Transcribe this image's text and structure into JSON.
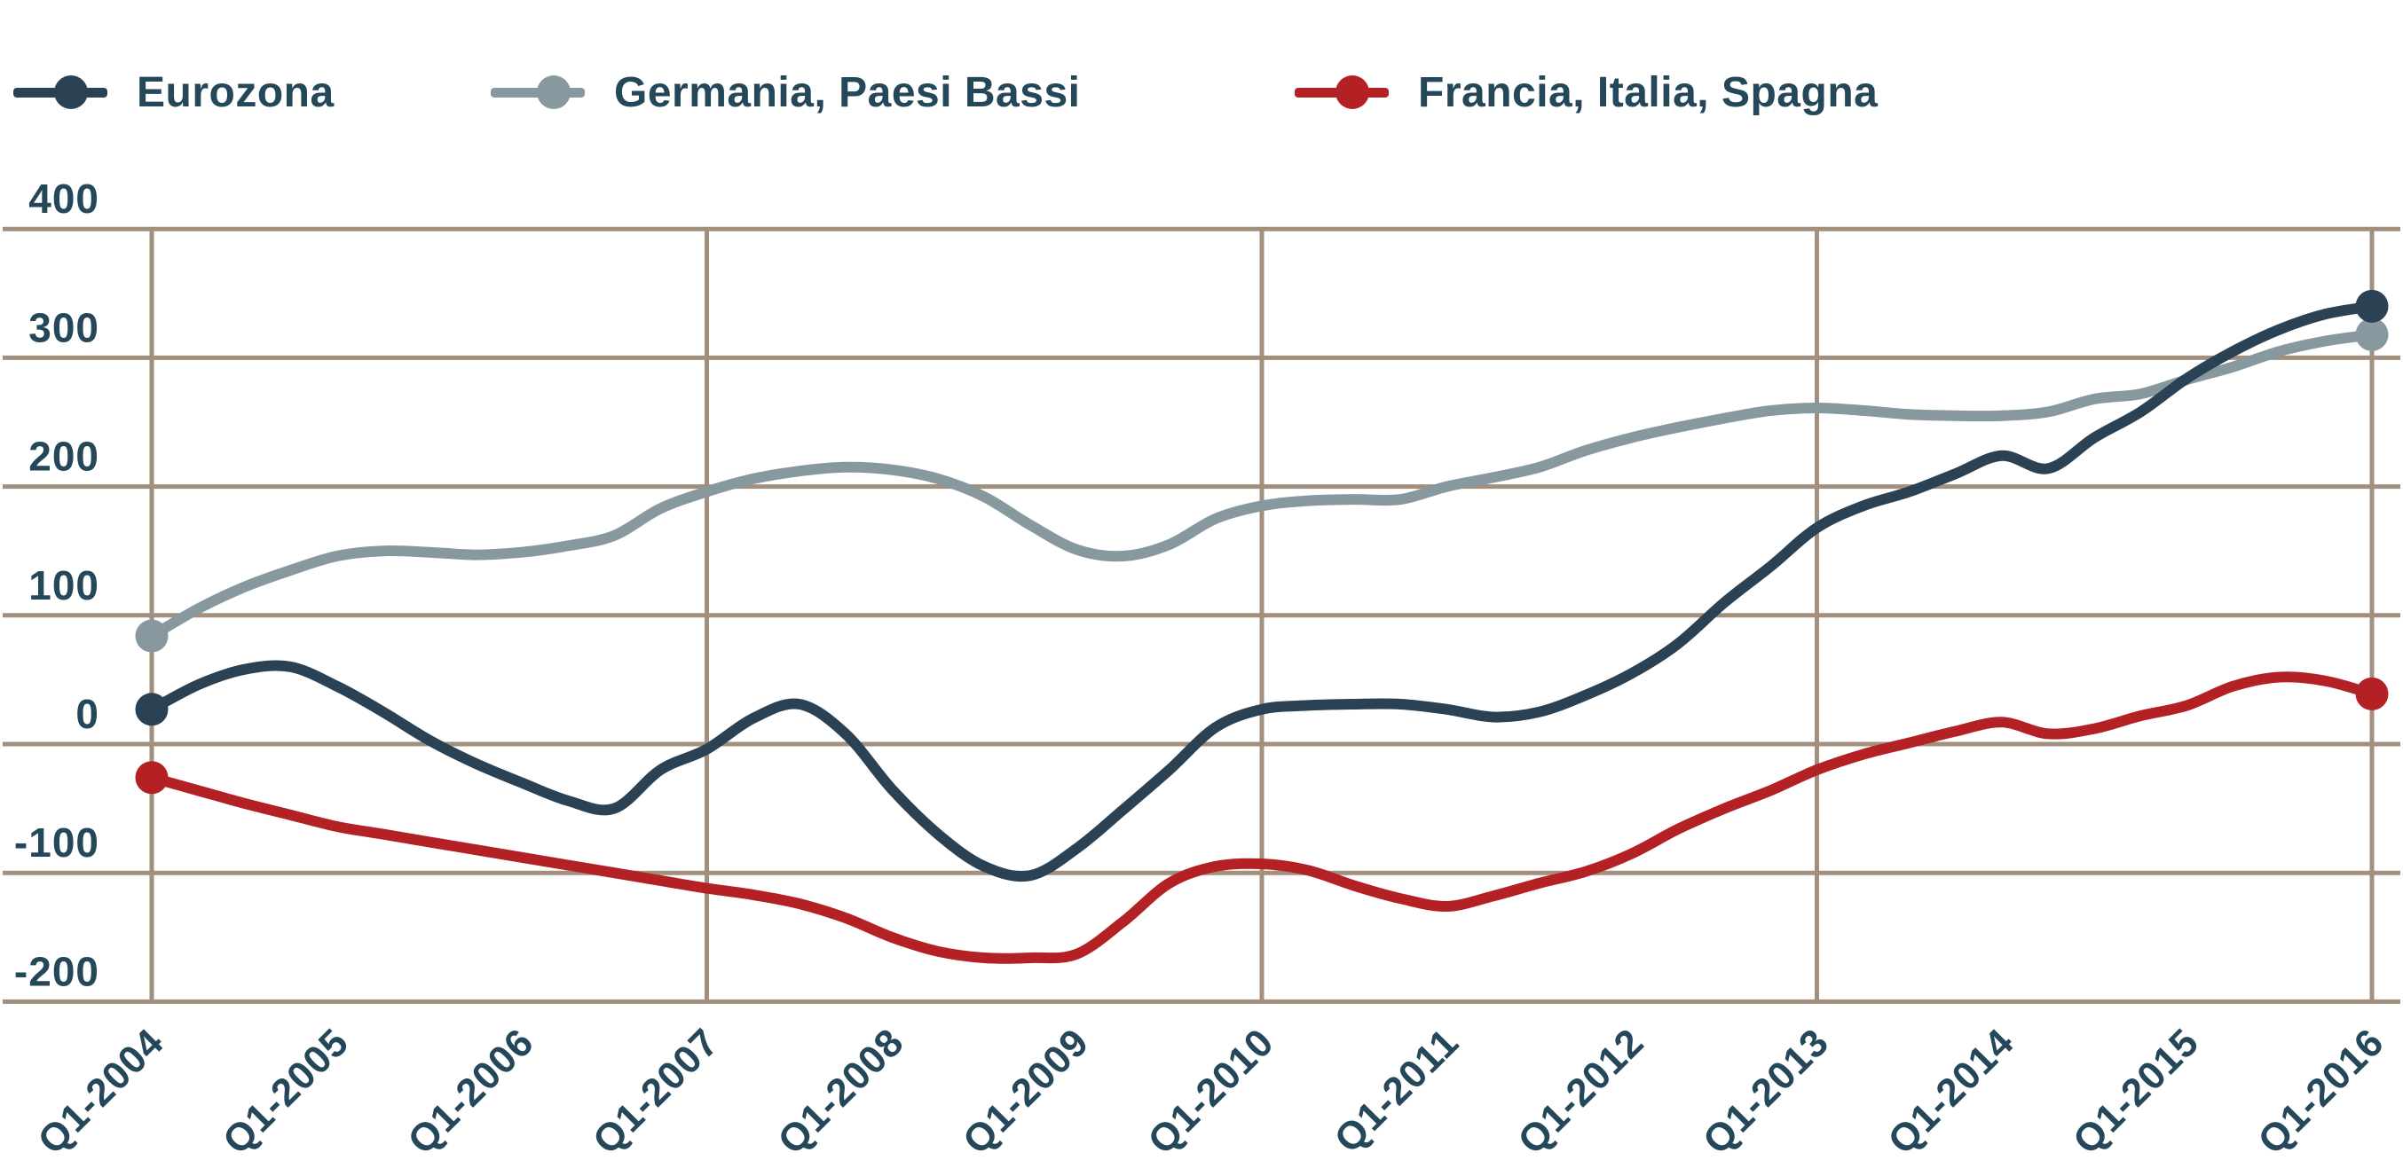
{
  "legend": {
    "items": [
      {
        "label": "Eurozona",
        "color": "#2b4254"
      },
      {
        "label": "Germania, Paesi Bassi",
        "color": "#87999f"
      },
      {
        "label": "Francia, Italia, Spagna",
        "color": "#b42125"
      }
    ]
  },
  "chart_data": {
    "type": "line",
    "title": "",
    "xlabel": "",
    "ylabel": "",
    "x_unit": "quarter",
    "x_start": "Q1-2004",
    "x_end": "Q1-2016",
    "x_tick_labels": [
      "Q1-2004",
      "Q1-2005",
      "Q1-2006",
      "Q1-2007",
      "Q1-2008",
      "Q1-2009",
      "Q1-2010",
      "Q1-2011",
      "Q1-2012",
      "Q1-2013",
      "Q1-2014",
      "Q1-2015",
      "Q1-2016"
    ],
    "x_gridline_quarters": [
      0,
      12,
      24,
      36,
      48
    ],
    "ylim": [
      -200,
      400
    ],
    "yticks": [
      400,
      300,
      200,
      100,
      0,
      -100,
      -200
    ],
    "grid": true,
    "grid_color": "#a28f7e",
    "label_color": "#25475a",
    "legend_position": "top-left",
    "line_width": 12,
    "endpoint_dots": true,
    "series": [
      {
        "name": "Eurozona",
        "color": "#2b4254",
        "values": [
          27,
          46,
          58,
          60,
          45,
          25,
          3,
          -15,
          -30,
          -44,
          -50,
          -20,
          -4,
          20,
          31,
          8,
          -35,
          -70,
          -95,
          -102,
          -81,
          -51,
          -20,
          13,
          27,
          30,
          31,
          31,
          27,
          21,
          25,
          38,
          55,
          78,
          110,
          138,
          168,
          185,
          196,
          210,
          224,
          214,
          238,
          258,
          284,
          305,
          322,
          334,
          340
        ]
      },
      {
        "name": "Germania, Paesi Bassi",
        "color": "#87999f",
        "values": [
          84,
          105,
          122,
          135,
          146,
          150,
          149,
          147,
          149,
          154,
          162,
          183,
          196,
          206,
          212,
          215,
          213,
          206,
          192,
          170,
          151,
          146,
          155,
          175,
          185,
          189,
          190,
          190,
          200,
          207,
          215,
          228,
          238,
          246,
          253,
          259,
          261,
          259,
          256,
          255,
          255,
          258,
          268,
          272,
          283,
          293,
          305,
          313,
          318
        ]
      },
      {
        "name": "Francia, Italia, Spagna",
        "color": "#b42125",
        "values": [
          -26,
          -36,
          -46,
          -55,
          -64,
          -70,
          -76,
          -82,
          -88,
          -94,
          -100,
          -106,
          -112,
          -117,
          -124,
          -135,
          -150,
          -161,
          -166,
          -166,
          -163,
          -138,
          -108,
          -95,
          -93,
          -98,
          -110,
          -120,
          -126,
          -118,
          -108,
          -99,
          -85,
          -66,
          -50,
          -36,
          -20,
          -8,
          1,
          10,
          17,
          8,
          12,
          22,
          30,
          45,
          52,
          49,
          39
        ]
      }
    ]
  }
}
